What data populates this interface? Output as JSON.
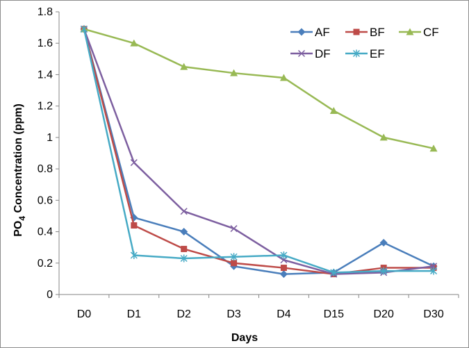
{
  "chart_data": {
    "type": "line",
    "title": "",
    "xlabel": "Days",
    "ylabel_main": "PO",
    "ylabel_sub": "4",
    "ylabel_rest": " Concentration (ppm)",
    "categories": [
      "D0",
      "D1",
      "D2",
      "D3",
      "D4",
      "D15",
      "D20",
      "D30"
    ],
    "ylim": [
      0,
      1.8
    ],
    "yticks": [
      "0",
      "0.2",
      "0.4",
      "0.6",
      "0.8",
      "1",
      "1.2",
      "1.4",
      "1.6",
      "1.8"
    ],
    "grid": false,
    "legend_position": "top-right",
    "series": [
      {
        "name": "AF",
        "color": "#4a7ebb",
        "marker": "diamond",
        "values": [
          1.69,
          0.49,
          0.4,
          0.18,
          0.13,
          0.14,
          0.33,
          0.18
        ]
      },
      {
        "name": "BF",
        "color": "#be4b48",
        "marker": "square",
        "values": [
          1.69,
          0.44,
          0.29,
          0.2,
          0.17,
          0.13,
          0.17,
          0.17
        ]
      },
      {
        "name": "CF",
        "color": "#98b954",
        "marker": "triangle",
        "values": [
          1.69,
          1.6,
          1.45,
          1.41,
          1.38,
          1.17,
          1.0,
          0.93
        ]
      },
      {
        "name": "DF",
        "color": "#7d5fa0",
        "marker": "x",
        "values": [
          1.69,
          0.84,
          0.53,
          0.42,
          0.22,
          0.13,
          0.14,
          0.18
        ]
      },
      {
        "name": "EF",
        "color": "#46aac5",
        "marker": "star",
        "values": [
          1.69,
          0.25,
          0.23,
          0.24,
          0.25,
          0.14,
          0.15,
          0.15
        ]
      }
    ]
  }
}
